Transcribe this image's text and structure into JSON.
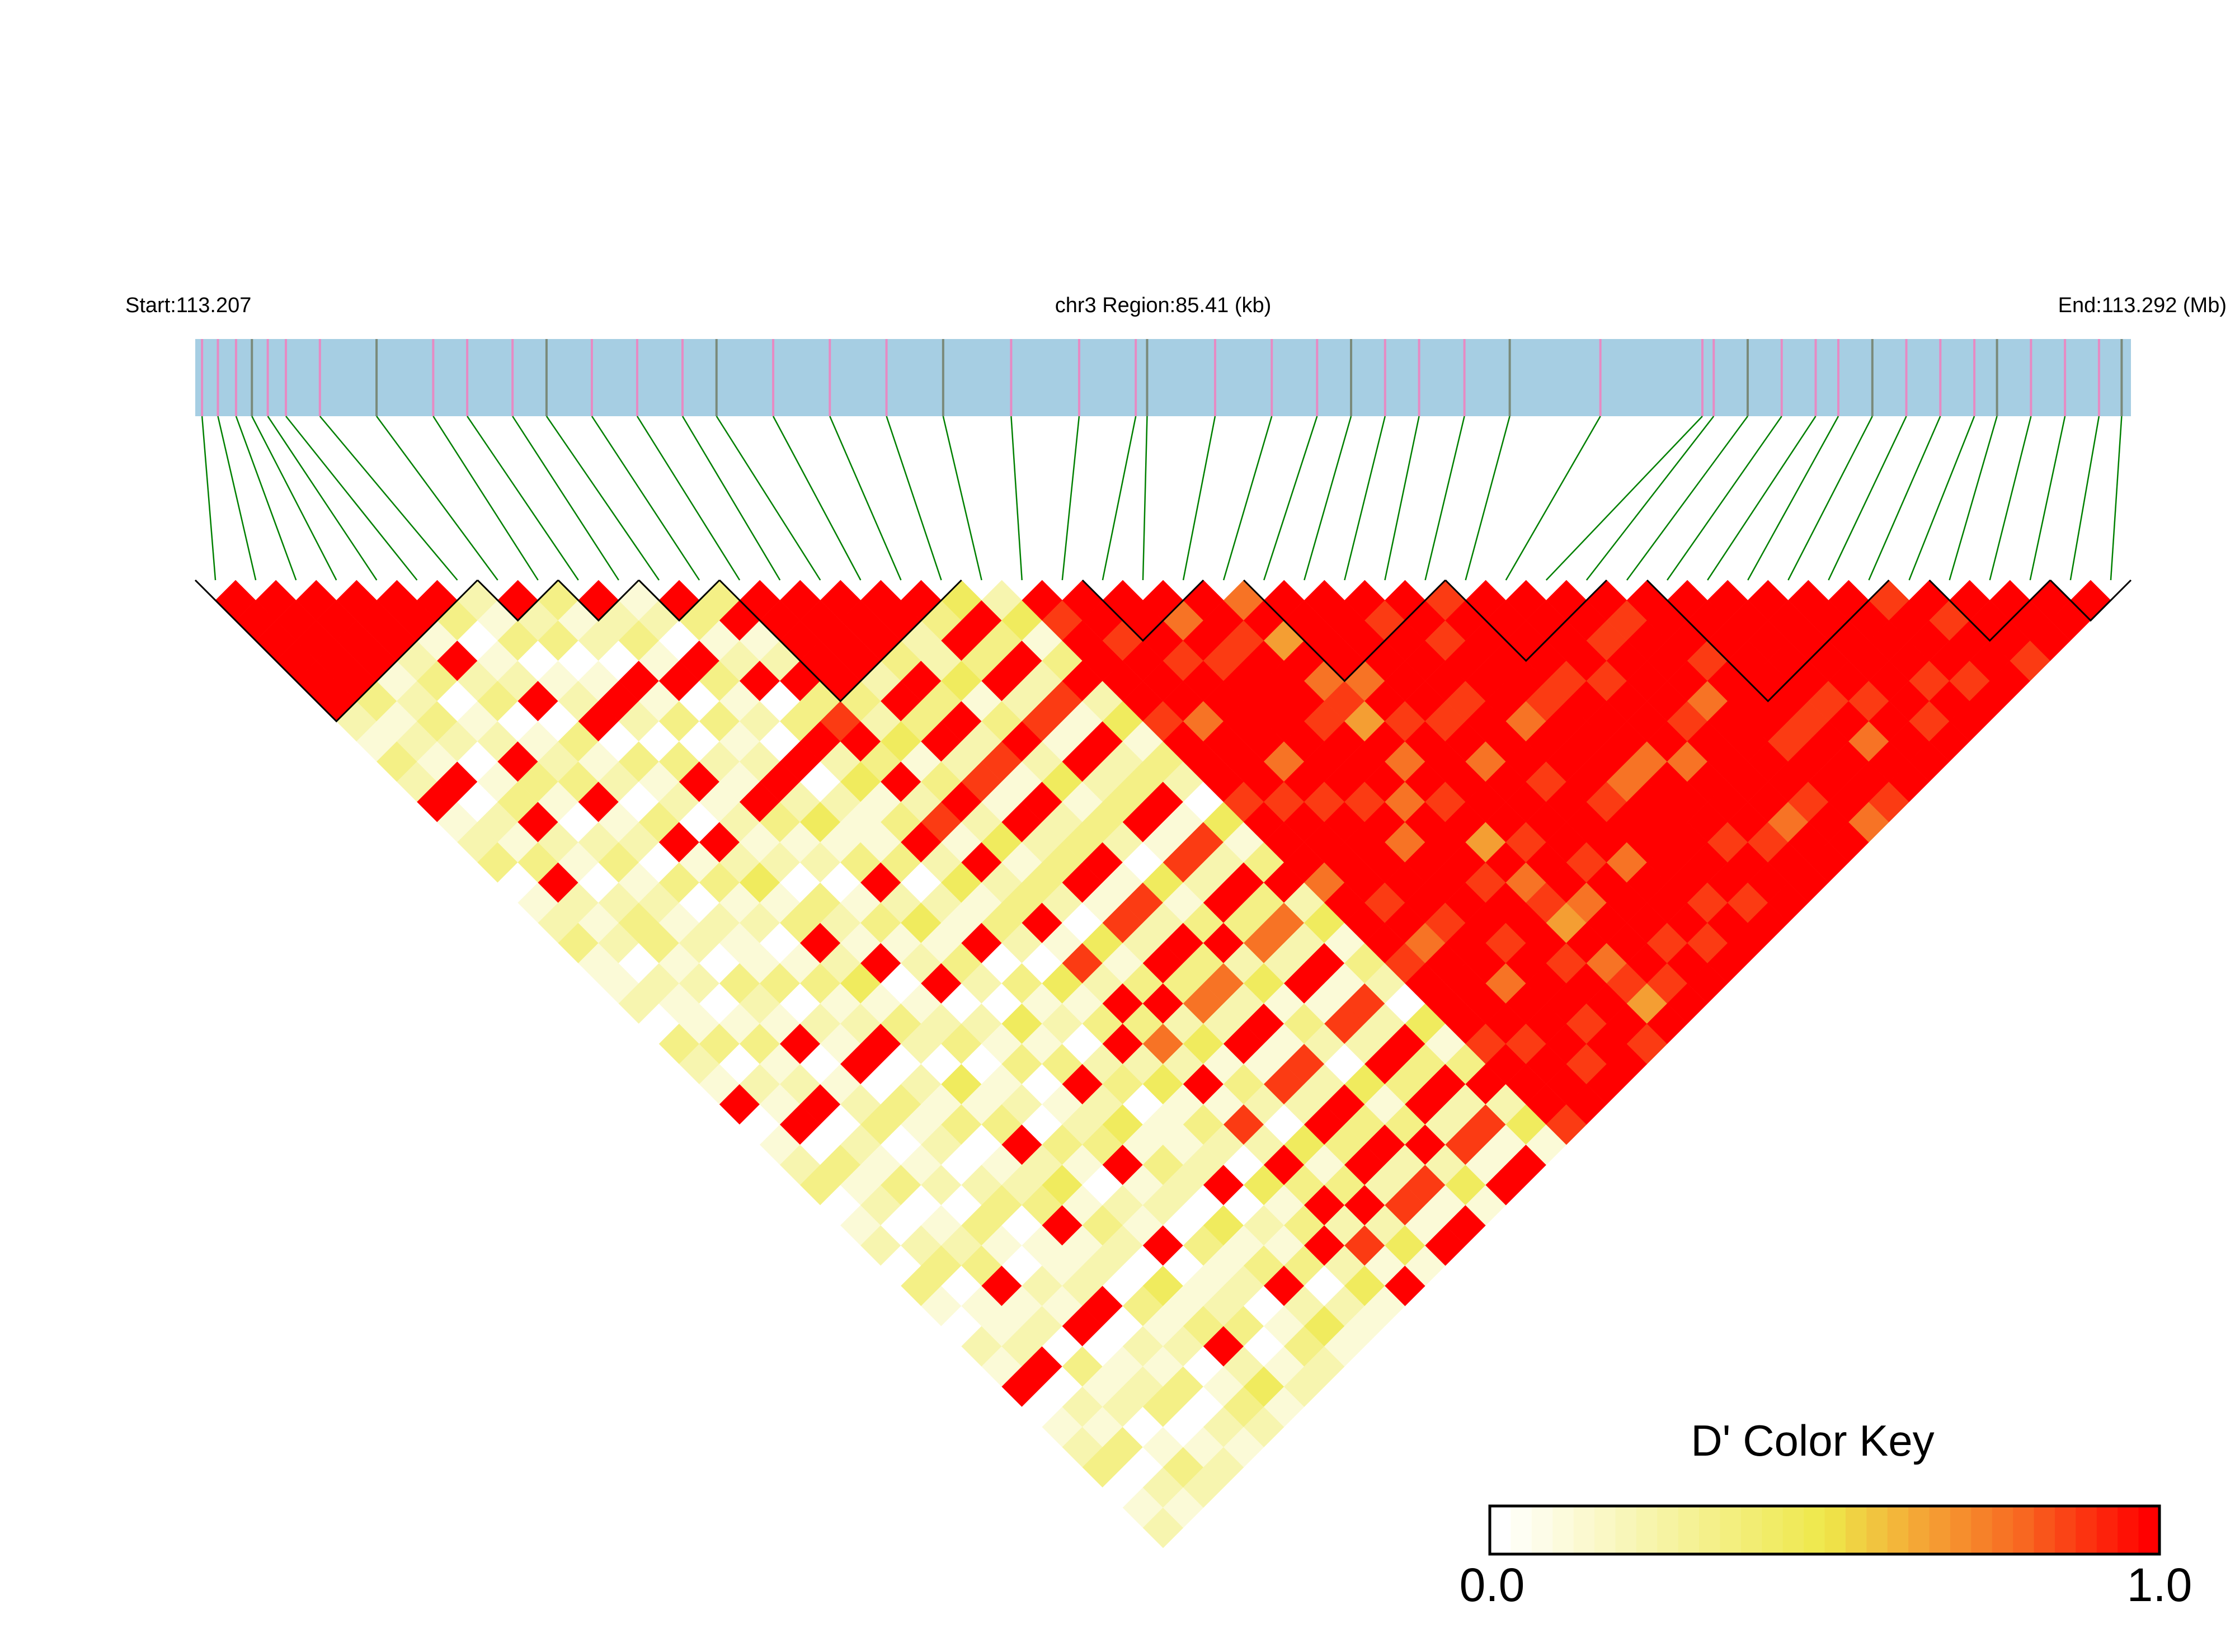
{
  "chart_data": {
    "type": "heatmap",
    "subtype": "LD triangle heatmap",
    "header": {
      "start_label": "Start:113.207",
      "region_label": "chr3 Region:85.41 (kb)",
      "end_label": "End:113.292 (Mb)"
    },
    "region_kb": 85.41,
    "snp_positions_kb": [
      0.3,
      1.0,
      1.8,
      2.5,
      3.2,
      4.0,
      5.5,
      8.0,
      10.5,
      12.0,
      14.0,
      15.5,
      17.5,
      19.5,
      21.5,
      23.0,
      25.5,
      28.0,
      30.5,
      33.0,
      36.0,
      39.0,
      41.5,
      42.0,
      45.0,
      47.5,
      49.5,
      51.0,
      52.5,
      54.0,
      56.0,
      58.0,
      62.0,
      66.5,
      67.0,
      68.5,
      70.0,
      71.5,
      72.5,
      74.0,
      75.5,
      77.0,
      78.5,
      79.5,
      81.0,
      82.5,
      84.0,
      85.0
    ],
    "dprime_scale": "digit/9 (0=0.0, 9=1.0); row i lists pairs (i,j) for j>i",
    "dprime_rows": [
      "99999921329123012311203219012301203102190123012",
      "9999931219021392120211302190312023011290213021",
      "999912320139210233120131290213012391203120132",
      "99923012931023121203219012301203102190123012",
      "9919230123912030211302190312023011290213021",
      "930129031203913120131290213012391203120132",
      "21301290312092413924132041392413204139241",
      "9230192039121203219012301203102190123012",
      "312091302193120131290213012391203120132",
      "92319031292413924132041392413204139241",
      "1209312090211302190312023011290213021",
      "931290392413924132041392413204139241",
      "39129389392819239182937291829392819",
      "9999932413924132041392413204139241",
      "999929392819239182937291829392819",
      "99939392819239182937291829392819",
      "9922413924132041392413204139241",
      "939392819239182937291829392819",
      "49392819239182937291829392819",
      "2413924132041392413204139241",
      "989999899989997999899989998",
      "99899979998999989799998999",
      "9998999979899999899799989",
      "979899999989799998999899",
      "99899989997999899989998",
      "7969786979896978697869",
      "999979899999899799989",
      "99999989799998999899",
      "9899989998999799989",
      "998999799989999899",
      "89999899979999989",
      "9999899979998999",
      "999989997999899",
      "99899989999799",
      "9899979999899",
      "999899989997",
      "99999989998",
      "9999989799",
      "999998999",
      "99999989",
      "9999899",
      "899989",
      "98999",
      "9998",
      "999",
      "99",
      "9",
      ""
    ],
    "ld_blocks": [
      [
        0,
        6
      ],
      [
        7,
        8
      ],
      [
        9,
        10
      ],
      [
        11,
        12
      ],
      [
        13,
        18
      ],
      [
        22,
        24
      ],
      [
        26,
        30
      ],
      [
        31,
        34
      ],
      [
        36,
        41
      ],
      [
        43,
        45
      ],
      [
        46,
        47
      ]
    ],
    "legend": {
      "title": "D' Color Key",
      "min_label": "0.0",
      "max_label": "1.0",
      "range": [
        0,
        1
      ],
      "steps": 32,
      "placement": "bottom-right"
    },
    "colors": {
      "bar_bg": "#A6CEE3",
      "snp_tick": "#E78AC3",
      "snp_tick_alt": "#7A8A7A",
      "connector": "#008000",
      "low": "#FFFFFF",
      "mid": "#EEE84A",
      "high": "#FF0000"
    }
  }
}
